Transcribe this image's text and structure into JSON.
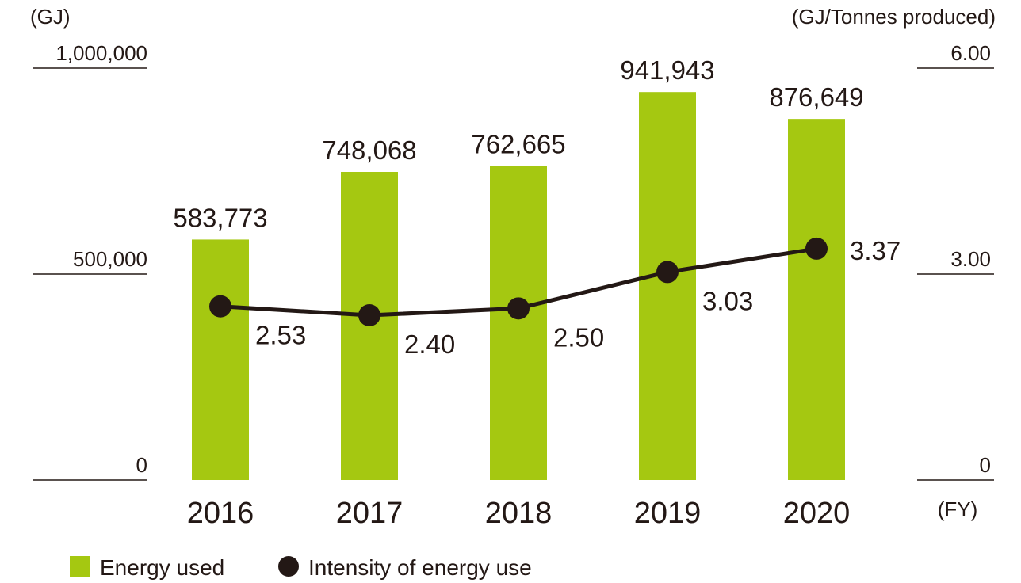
{
  "chart_data": {
    "type": "bar",
    "categories": [
      "2016",
      "2017",
      "2018",
      "2019",
      "2020"
    ],
    "series": [
      {
        "name": "Energy used",
        "type": "bar",
        "axis": "left",
        "values": [
          583773,
          748068,
          762665,
          941943,
          876649
        ],
        "labels": [
          "583,773",
          "748,068",
          "762,665",
          "941,943",
          "876,649"
        ],
        "color": "#A5C811"
      },
      {
        "name": "Intensity of energy use",
        "type": "line",
        "axis": "right",
        "values": [
          2.53,
          2.4,
          2.5,
          3.03,
          3.37
        ],
        "labels": [
          "2.53",
          "2.40",
          "2.50",
          "3.03",
          "3.37"
        ],
        "color": "#231815"
      }
    ],
    "y_left": {
      "unit": "(GJ)",
      "ylim": [
        0,
        1000000
      ],
      "ticks": [
        0,
        500000,
        1000000
      ],
      "tick_labels": [
        "0",
        "500,000",
        "1,000,000"
      ]
    },
    "y_right": {
      "unit": "(GJ/Tonnes produced)",
      "ylim": [
        0,
        6
      ],
      "ticks": [
        0,
        3,
        6
      ],
      "tick_labels": [
        "0",
        "3.00",
        "6.00"
      ]
    },
    "x_unit": "(FY)",
    "legend": {
      "placement": "bottom-left",
      "items": [
        "Energy used",
        "Intensity of energy use"
      ]
    },
    "grid": false,
    "text_color": "#231815"
  }
}
